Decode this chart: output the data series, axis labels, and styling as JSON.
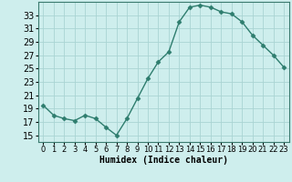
{
  "title": "",
  "xlabel": "Humidex (Indice chaleur)",
  "x": [
    0,
    1,
    2,
    3,
    4,
    5,
    6,
    7,
    8,
    9,
    10,
    11,
    12,
    13,
    14,
    15,
    16,
    17,
    18,
    19,
    20,
    21,
    22,
    23
  ],
  "y": [
    19.5,
    18.0,
    17.5,
    17.2,
    18.0,
    17.5,
    16.2,
    15.0,
    17.5,
    20.5,
    23.5,
    26.0,
    27.5,
    32.0,
    34.2,
    34.5,
    34.2,
    33.5,
    33.2,
    32.0,
    30.0,
    28.5,
    27.0,
    25.2
  ],
  "line_color": "#2e7d6e",
  "marker": "D",
  "marker_size": 2.5,
  "bg_color": "#ceeeed",
  "grid_color": "#aad4d3",
  "ylim": [
    14,
    35
  ],
  "yticks": [
    15,
    17,
    19,
    21,
    23,
    25,
    27,
    29,
    31,
    33
  ],
  "xlim": [
    -0.5,
    23.5
  ],
  "xticks": [
    0,
    1,
    2,
    3,
    4,
    5,
    6,
    7,
    8,
    9,
    10,
    11,
    12,
    13,
    14,
    15,
    16,
    17,
    18,
    19,
    20,
    21,
    22,
    23
  ],
  "xlabel_fontsize": 7,
  "ytick_fontsize": 7,
  "xtick_fontsize": 6,
  "line_width": 1.0,
  "spine_color": "#3a7a6e"
}
